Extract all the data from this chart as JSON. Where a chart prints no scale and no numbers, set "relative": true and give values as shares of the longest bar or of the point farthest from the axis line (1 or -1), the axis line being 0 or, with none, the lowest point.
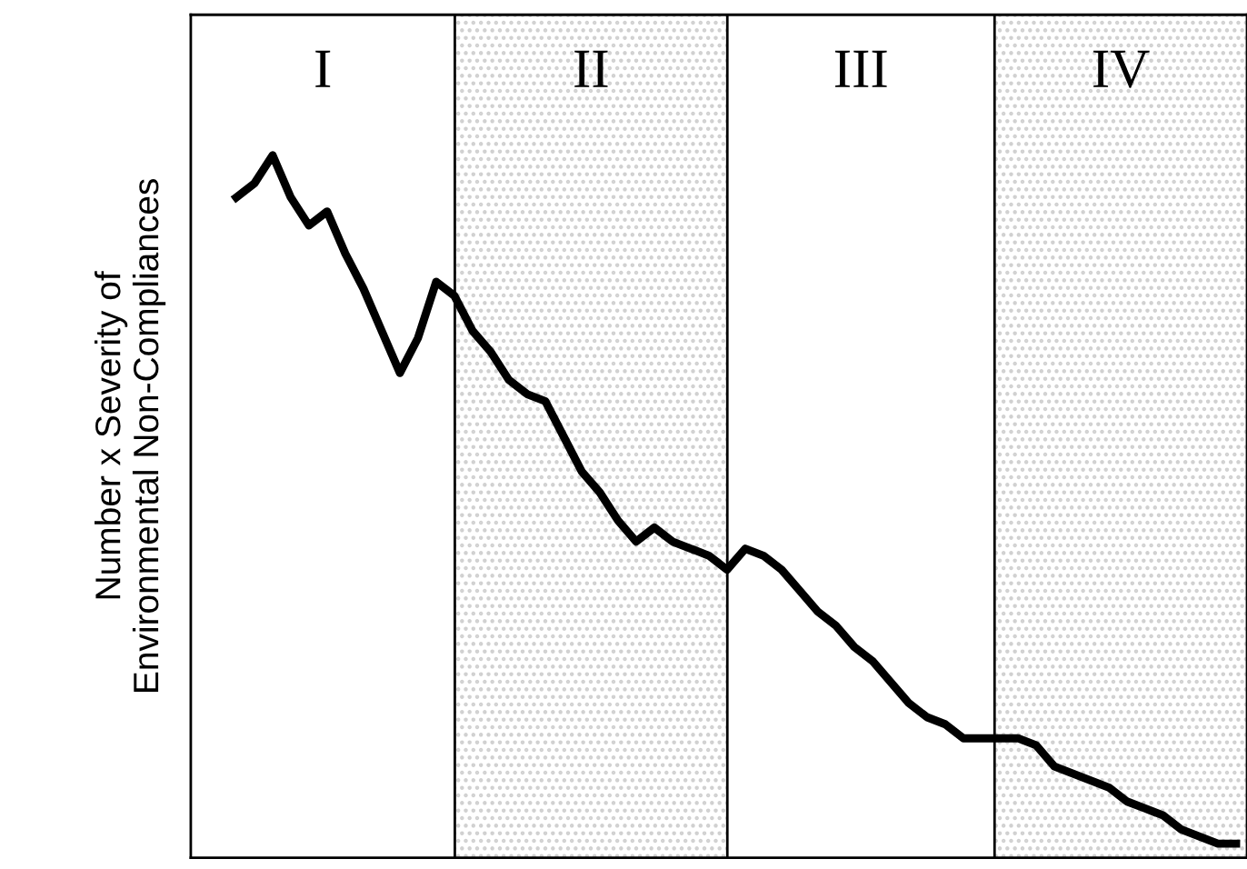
{
  "chart_data": {
    "type": "line",
    "relative": true,
    "ylabel": "Number x Severity of\nEnvironmental Non-Compliances",
    "categories": [
      null,
      null,
      null,
      null,
      null,
      null,
      null,
      null,
      null,
      null,
      null,
      null,
      null,
      null,
      null,
      null,
      null,
      null,
      null,
      null,
      null,
      null,
      null,
      null,
      null,
      null,
      null,
      null,
      null,
      null,
      null,
      null,
      null,
      null,
      null,
      null,
      null,
      null,
      null,
      null,
      null,
      null,
      null,
      null,
      null,
      null,
      null,
      null,
      null,
      null,
      null,
      null,
      null,
      null,
      null,
      null
    ],
    "series": [
      {
        "color": "#000000",
        "values": [
          0.94,
          0.96,
          1.0,
          0.94,
          0.9,
          0.92,
          0.86,
          0.81,
          0.75,
          0.69,
          0.74,
          0.82,
          0.8,
          0.75,
          0.72,
          0.68,
          0.66,
          0.65,
          0.6,
          0.55,
          0.52,
          0.48,
          0.45,
          0.47,
          0.45,
          0.44,
          0.43,
          0.41,
          0.44,
          0.43,
          0.41,
          0.38,
          0.35,
          0.33,
          0.3,
          0.28,
          0.25,
          0.22,
          0.2,
          0.19,
          0.17,
          0.17,
          0.17,
          0.17,
          0.16,
          0.13,
          0.12,
          0.11,
          0.1,
          0.08,
          0.07,
          0.06,
          0.04,
          0.03,
          0.02,
          0.02
        ]
      }
    ],
    "annotations": [
      "I",
      "II",
      "III",
      "IV"
    ],
    "line_style": "solid",
    "marker": "none",
    "legend": false
  }
}
